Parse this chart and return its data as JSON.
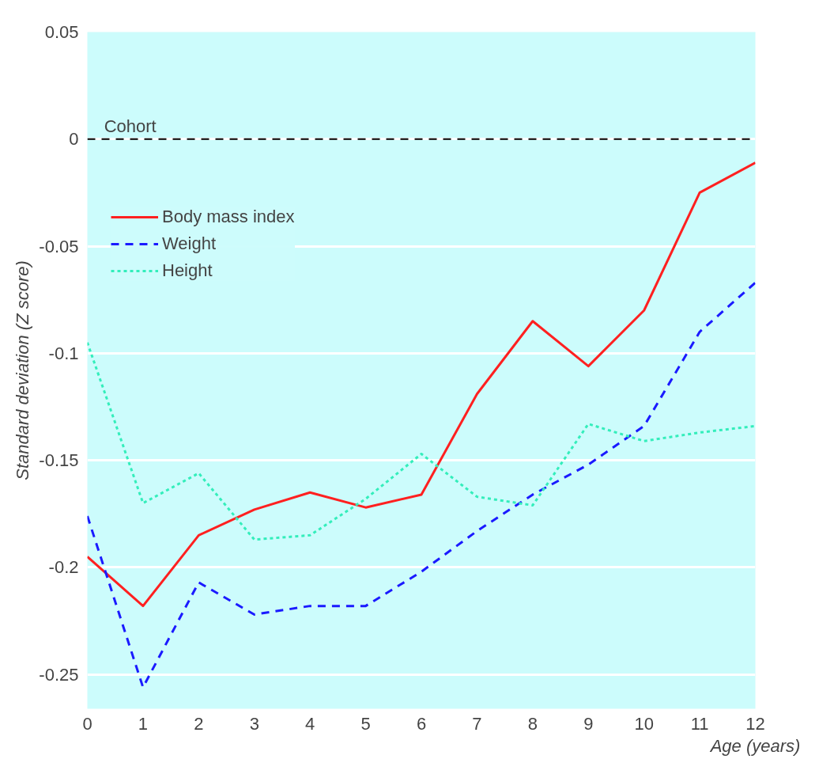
{
  "chart_data": {
    "type": "line",
    "xlabel": "Age (years)",
    "ylabel": "Standard deviation (Z score)",
    "x": [
      0,
      1,
      2,
      3,
      4,
      5,
      6,
      7,
      8,
      9,
      10,
      11,
      12
    ],
    "series": [
      {
        "name": "Body mass index",
        "color": "#ff2020",
        "line_style": "solid",
        "values": [
          -0.195,
          -0.218,
          -0.185,
          -0.173,
          -0.165,
          -0.172,
          -0.166,
          -0.119,
          -0.085,
          -0.106,
          -0.08,
          -0.025,
          -0.011
        ]
      },
      {
        "name": "Weight",
        "color": "#1a1aff",
        "line_style": "dashed",
        "values": [
          -0.176,
          -0.256,
          -0.207,
          -0.222,
          -0.218,
          -0.218,
          -0.202,
          -0.183,
          -0.166,
          -0.152,
          -0.134,
          -0.09,
          -0.067
        ]
      },
      {
        "name": "Height",
        "color": "#33eebb",
        "line_style": "dotted",
        "values": [
          -0.095,
          -0.17,
          -0.156,
          -0.187,
          -0.185,
          -0.168,
          -0.147,
          -0.167,
          -0.171,
          -0.133,
          -0.141,
          -0.137,
          -0.134
        ]
      }
    ],
    "xlim": [
      0,
      12
    ],
    "xticks": [
      0,
      1,
      2,
      3,
      4,
      5,
      6,
      7,
      8,
      9,
      10,
      11,
      12
    ],
    "ylim": [
      -0.266,
      0.05
    ],
    "yticks": [
      0.05,
      0,
      -0.05,
      -0.1,
      -0.15,
      -0.2,
      -0.25
    ],
    "ref_lines": [
      {
        "axis": "y",
        "value": 0,
        "label": "Cohort",
        "color": "#000000",
        "line_style": "dashed"
      }
    ],
    "grid": "y",
    "legend": "top left",
    "marker": "none"
  }
}
